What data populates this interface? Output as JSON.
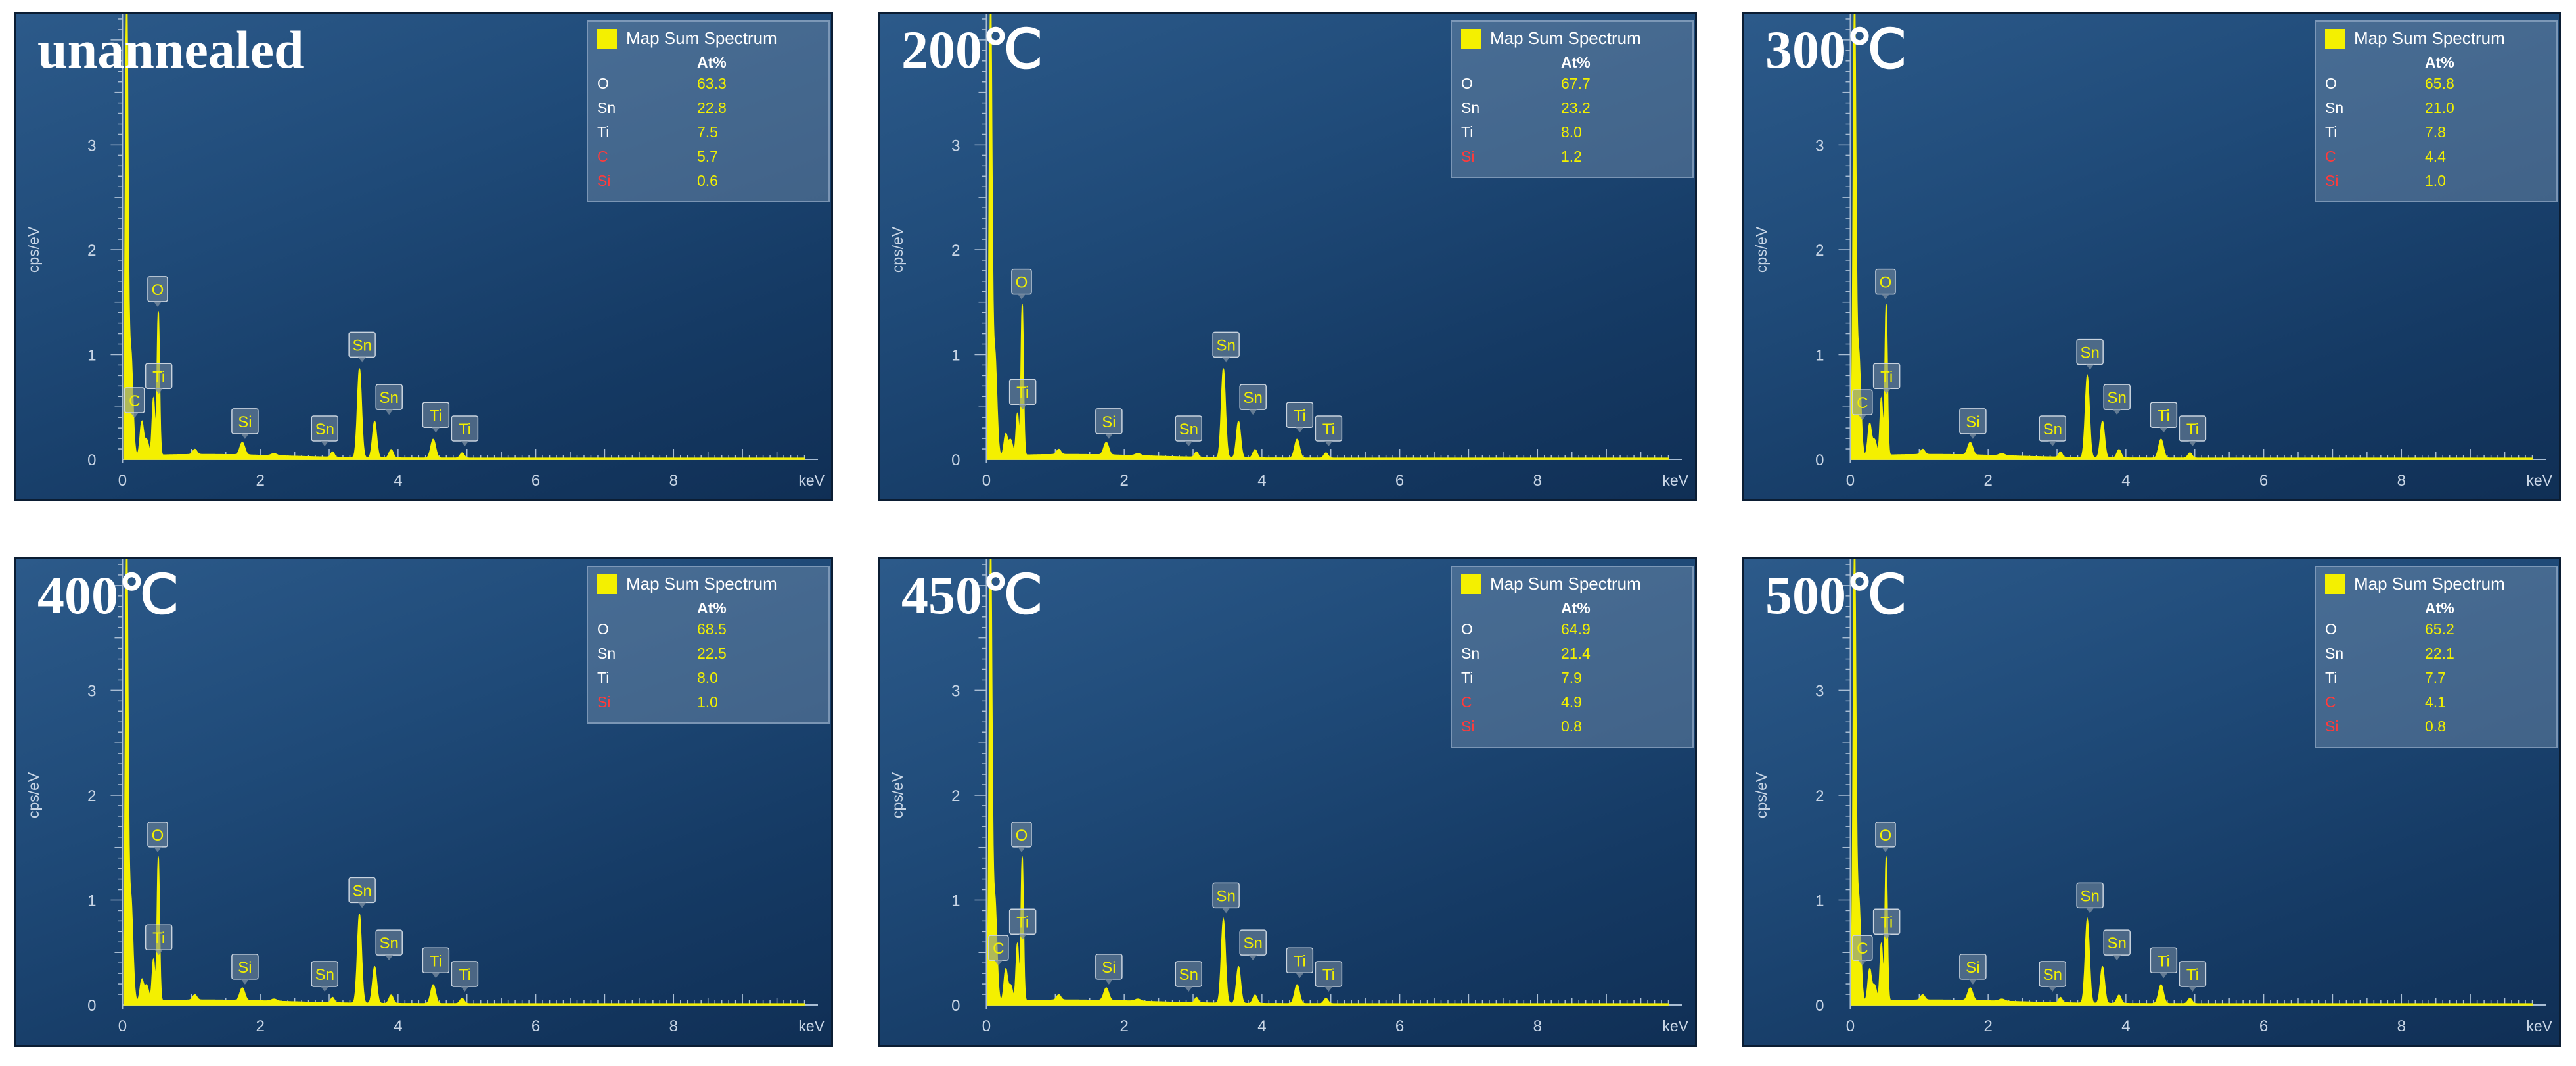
{
  "colors": {
    "spectrum": "#f4f000",
    "light_element": "#ff3b3b",
    "text_default": "#ffffff",
    "value_text": "#f2f000"
  },
  "chart_data": [
    {
      "type": "line",
      "condition": "unannealed",
      "legend_title": "Map Sum Spectrum",
      "legend_unit": "At%",
      "composition": [
        {
          "element": "O",
          "at_pct": "63.3",
          "color": "#ffffff"
        },
        {
          "element": "Sn",
          "at_pct": "22.8",
          "color": "#ffffff"
        },
        {
          "element": "Ti",
          "at_pct": "7.5",
          "color": "#ffffff"
        },
        {
          "element": "C",
          "at_pct": "5.7",
          "color": "#ff3b3b"
        },
        {
          "element": "Si",
          "at_pct": "0.6",
          "color": "#ff3b3b"
        }
      ],
      "xlabel": "keV",
      "ylabel": "cps/eV",
      "xlim": [
        -0.3,
        10.0
      ],
      "ylim": [
        0,
        4.25
      ],
      "xticks": [
        "0",
        "2",
        "4",
        "6",
        "8"
      ],
      "yticks": [
        "0",
        "1",
        "2",
        "3"
      ],
      "peaks": [
        {
          "label": "C",
          "kev": 0.28,
          "cps": 0.32
        },
        {
          "label": "Ti",
          "kev": 0.45,
          "cps": 0.55
        },
        {
          "label": "O",
          "kev": 0.52,
          "cps": 1.38
        },
        {
          "label": "Si",
          "kev": 1.74,
          "cps": 0.12
        },
        {
          "label": "Sn",
          "kev": 3.05,
          "cps": 0.05
        },
        {
          "label": "Sn",
          "kev": 3.44,
          "cps": 0.85
        },
        {
          "label": "Sn",
          "kev": 3.66,
          "cps": 0.35
        },
        {
          "label": "Ti",
          "kev": 4.51,
          "cps": 0.18
        },
        {
          "label": "Ti",
          "kev": 4.93,
          "cps": 0.05
        }
      ]
    },
    {
      "type": "line",
      "condition": "200℃",
      "legend_title": "Map Sum Spectrum",
      "legend_unit": "At%",
      "composition": [
        {
          "element": "O",
          "at_pct": "67.7",
          "color": "#ffffff"
        },
        {
          "element": "Sn",
          "at_pct": "23.2",
          "color": "#ffffff"
        },
        {
          "element": "Ti",
          "at_pct": "8.0",
          "color": "#ffffff"
        },
        {
          "element": "Si",
          "at_pct": "1.2",
          "color": "#ff3b3b"
        }
      ],
      "xlabel": "keV",
      "ylabel": "cps/eV",
      "xlim": [
        -0.3,
        10.0
      ],
      "ylim": [
        0,
        4.25
      ],
      "xticks": [
        "0",
        "2",
        "4",
        "6",
        "8"
      ],
      "yticks": [
        "0",
        "1",
        "2",
        "3"
      ],
      "peaks": [
        {
          "label": "Ti",
          "kev": 0.45,
          "cps": 0.4
        },
        {
          "label": "O",
          "kev": 0.52,
          "cps": 1.45
        },
        {
          "label": "Si",
          "kev": 1.74,
          "cps": 0.12
        },
        {
          "label": "Sn",
          "kev": 3.05,
          "cps": 0.05
        },
        {
          "label": "Sn",
          "kev": 3.44,
          "cps": 0.85
        },
        {
          "label": "Sn",
          "kev": 3.66,
          "cps": 0.35
        },
        {
          "label": "Ti",
          "kev": 4.51,
          "cps": 0.18
        },
        {
          "label": "Ti",
          "kev": 4.93,
          "cps": 0.05
        }
      ]
    },
    {
      "type": "line",
      "condition": "300℃",
      "legend_title": "Map Sum Spectrum",
      "legend_unit": "At%",
      "composition": [
        {
          "element": "O",
          "at_pct": "65.8",
          "color": "#ffffff"
        },
        {
          "element": "Sn",
          "at_pct": "21.0",
          "color": "#ffffff"
        },
        {
          "element": "Ti",
          "at_pct": "7.8",
          "color": "#ffffff"
        },
        {
          "element": "C",
          "at_pct": "4.4",
          "color": "#ff3b3b"
        },
        {
          "element": "Si",
          "at_pct": "1.0",
          "color": "#ff3b3b"
        }
      ],
      "xlabel": "keV",
      "ylabel": "cps/eV",
      "xlim": [
        -0.3,
        10.0
      ],
      "ylim": [
        0,
        4.25
      ],
      "xticks": [
        "0",
        "2",
        "4",
        "6",
        "8"
      ],
      "yticks": [
        "0",
        "1",
        "2",
        "3"
      ],
      "peaks": [
        {
          "label": "C",
          "kev": 0.28,
          "cps": 0.3
        },
        {
          "label": "Ti",
          "kev": 0.45,
          "cps": 0.55
        },
        {
          "label": "O",
          "kev": 0.52,
          "cps": 1.45
        },
        {
          "label": "Si",
          "kev": 1.74,
          "cps": 0.12
        },
        {
          "label": "Sn",
          "kev": 3.05,
          "cps": 0.05
        },
        {
          "label": "Sn",
          "kev": 3.44,
          "cps": 0.78
        },
        {
          "label": "Sn",
          "kev": 3.66,
          "cps": 0.35
        },
        {
          "label": "Ti",
          "kev": 4.51,
          "cps": 0.18
        },
        {
          "label": "Ti",
          "kev": 4.93,
          "cps": 0.05
        }
      ]
    },
    {
      "type": "line",
      "condition": "400℃",
      "legend_title": "Map Sum Spectrum",
      "legend_unit": "At%",
      "composition": [
        {
          "element": "O",
          "at_pct": "68.5",
          "color": "#ffffff"
        },
        {
          "element": "Sn",
          "at_pct": "22.5",
          "color": "#ffffff"
        },
        {
          "element": "Ti",
          "at_pct": "8.0",
          "color": "#ffffff"
        },
        {
          "element": "Si",
          "at_pct": "1.0",
          "color": "#ff3b3b"
        }
      ],
      "xlabel": "keV",
      "ylabel": "cps/eV",
      "xlim": [
        -0.3,
        10.0
      ],
      "ylim": [
        0,
        4.25
      ],
      "xticks": [
        "0",
        "2",
        "4",
        "6",
        "8"
      ],
      "yticks": [
        "0",
        "1",
        "2",
        "3"
      ],
      "peaks": [
        {
          "label": "Ti",
          "kev": 0.45,
          "cps": 0.4
        },
        {
          "label": "O",
          "kev": 0.52,
          "cps": 1.38
        },
        {
          "label": "Si",
          "kev": 1.74,
          "cps": 0.12
        },
        {
          "label": "Sn",
          "kev": 3.05,
          "cps": 0.05
        },
        {
          "label": "Sn",
          "kev": 3.44,
          "cps": 0.85
        },
        {
          "label": "Sn",
          "kev": 3.66,
          "cps": 0.35
        },
        {
          "label": "Ti",
          "kev": 4.51,
          "cps": 0.18
        },
        {
          "label": "Ti",
          "kev": 4.93,
          "cps": 0.05
        }
      ]
    },
    {
      "type": "line",
      "condition": "450℃",
      "legend_title": "Map Sum Spectrum",
      "legend_unit": "At%",
      "composition": [
        {
          "element": "O",
          "at_pct": "64.9",
          "color": "#ffffff"
        },
        {
          "element": "Sn",
          "at_pct": "21.4",
          "color": "#ffffff"
        },
        {
          "element": "Ti",
          "at_pct": "7.9",
          "color": "#ffffff"
        },
        {
          "element": "C",
          "at_pct": "4.9",
          "color": "#ff3b3b"
        },
        {
          "element": "Si",
          "at_pct": "0.8",
          "color": "#ff3b3b"
        }
      ],
      "xlabel": "keV",
      "ylabel": "cps/eV",
      "xlim": [
        -0.3,
        10.0
      ],
      "ylim": [
        0,
        4.25
      ],
      "xticks": [
        "0",
        "2",
        "4",
        "6",
        "8"
      ],
      "yticks": [
        "0",
        "1",
        "2",
        "3"
      ],
      "peaks": [
        {
          "label": "C",
          "kev": 0.28,
          "cps": 0.3
        },
        {
          "label": "Ti",
          "kev": 0.45,
          "cps": 0.55
        },
        {
          "label": "O",
          "kev": 0.52,
          "cps": 1.38
        },
        {
          "label": "Si",
          "kev": 1.74,
          "cps": 0.12
        },
        {
          "label": "Sn",
          "kev": 3.05,
          "cps": 0.05
        },
        {
          "label": "Sn",
          "kev": 3.44,
          "cps": 0.8
        },
        {
          "label": "Sn",
          "kev": 3.66,
          "cps": 0.35
        },
        {
          "label": "Ti",
          "kev": 4.51,
          "cps": 0.18
        },
        {
          "label": "Ti",
          "kev": 4.93,
          "cps": 0.05
        }
      ]
    },
    {
      "type": "line",
      "condition": "500℃",
      "legend_title": "Map Sum Spectrum",
      "legend_unit": "At%",
      "composition": [
        {
          "element": "O",
          "at_pct": "65.2",
          "color": "#ffffff"
        },
        {
          "element": "Sn",
          "at_pct": "22.1",
          "color": "#ffffff"
        },
        {
          "element": "Ti",
          "at_pct": "7.7",
          "color": "#ffffff"
        },
        {
          "element": "C",
          "at_pct": "4.1",
          "color": "#ff3b3b"
        },
        {
          "element": "Si",
          "at_pct": "0.8",
          "color": "#ff3b3b"
        }
      ],
      "xlabel": "keV",
      "ylabel": "cps/eV",
      "xlim": [
        -0.3,
        10.0
      ],
      "ylim": [
        0,
        4.25
      ],
      "xticks": [
        "0",
        "2",
        "4",
        "6",
        "8"
      ],
      "yticks": [
        "0",
        "1",
        "2",
        "3"
      ],
      "peaks": [
        {
          "label": "C",
          "kev": 0.28,
          "cps": 0.3
        },
        {
          "label": "Ti",
          "kev": 0.45,
          "cps": 0.55
        },
        {
          "label": "O",
          "kev": 0.52,
          "cps": 1.38
        },
        {
          "label": "Si",
          "kev": 1.74,
          "cps": 0.12
        },
        {
          "label": "Sn",
          "kev": 3.05,
          "cps": 0.05
        },
        {
          "label": "Sn",
          "kev": 3.44,
          "cps": 0.8
        },
        {
          "label": "Sn",
          "kev": 3.66,
          "cps": 0.35
        },
        {
          "label": "Ti",
          "kev": 4.51,
          "cps": 0.18
        },
        {
          "label": "Ti",
          "kev": 4.93,
          "cps": 0.05
        }
      ]
    }
  ]
}
